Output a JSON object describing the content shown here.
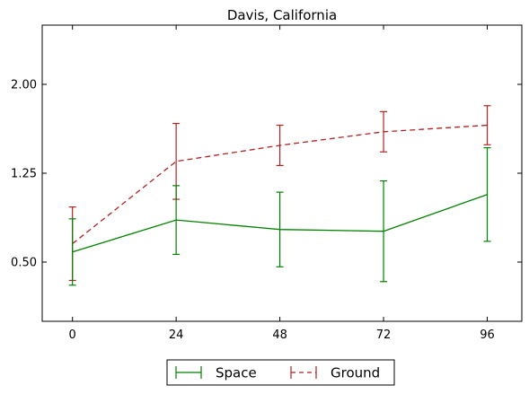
{
  "chart_data": {
    "type": "line",
    "title": "Davis, California",
    "xlabel": "",
    "ylabel": "",
    "x": [
      0,
      24,
      48,
      72,
      96
    ],
    "xticks": [
      "0",
      "24",
      "48",
      "72",
      "96"
    ],
    "yticks": [
      "0.50",
      "1.25",
      "2.00"
    ],
    "ytick_values": [
      0.5,
      1.25,
      2.0
    ],
    "xlim": [
      -7,
      104
    ],
    "ylim": [
      0.0,
      2.5
    ],
    "grid": false,
    "legend_position": "bottom-center",
    "series": [
      {
        "name": "Space",
        "color": "#008000",
        "linestyle": "solid",
        "values": [
          0.585,
          0.855,
          0.775,
          0.76,
          1.07
        ],
        "errors": [
          0.28,
          0.29,
          0.315,
          0.425,
          0.395
        ]
      },
      {
        "name": "Ground",
        "color": "#b22222",
        "linestyle": "dashed",
        "values": [
          0.655,
          1.35,
          1.485,
          1.6,
          1.655
        ],
        "errors": [
          0.31,
          0.32,
          0.17,
          0.17,
          0.165
        ]
      }
    ]
  }
}
